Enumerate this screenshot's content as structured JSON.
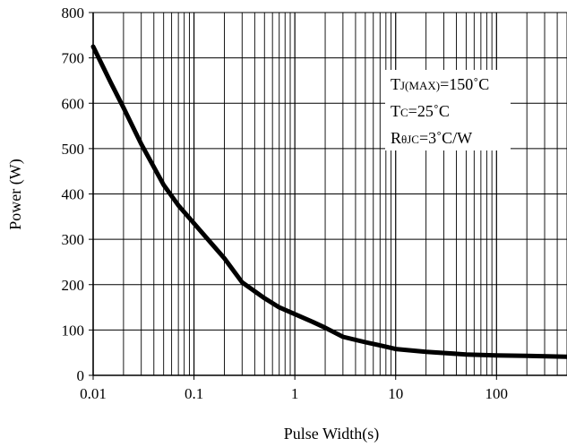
{
  "chart_data": {
    "type": "line",
    "title": "",
    "xlabel": "Pulse Width(s)",
    "ylabel": "Power (W)",
    "xscale": "log",
    "xlim": [
      0.01,
      500
    ],
    "ylim": [
      0,
      800
    ],
    "grid": true,
    "x_ticks": [
      "0.01",
      "0.1",
      "1",
      "10",
      "100"
    ],
    "y_ticks": [
      "0",
      "100",
      "200",
      "300",
      "400",
      "500",
      "600",
      "700",
      "800"
    ],
    "series": [
      {
        "x": [
          0.01,
          0.015,
          0.02,
          0.03,
          0.05,
          0.07,
          0.1,
          0.15,
          0.2,
          0.3,
          0.5,
          0.7,
          1,
          1.5,
          2,
          3,
          5,
          7,
          10,
          20,
          50,
          100,
          200,
          500
        ],
        "y": [
          725,
          645,
          590,
          510,
          420,
          375,
          335,
          290,
          258,
          205,
          170,
          150,
          135,
          118,
          105,
          85,
          73,
          66,
          58,
          52,
          46,
          44,
          43,
          41
        ]
      }
    ],
    "annotations": [
      {
        "main": "T",
        "sub": "J(MAX)",
        "rest": "=150˚C"
      },
      {
        "main": "T",
        "sub": "C",
        "rest": "=25˚C"
      },
      {
        "main": "R",
        "sub": "θJC",
        "rest": "=3˚C/W"
      }
    ]
  }
}
